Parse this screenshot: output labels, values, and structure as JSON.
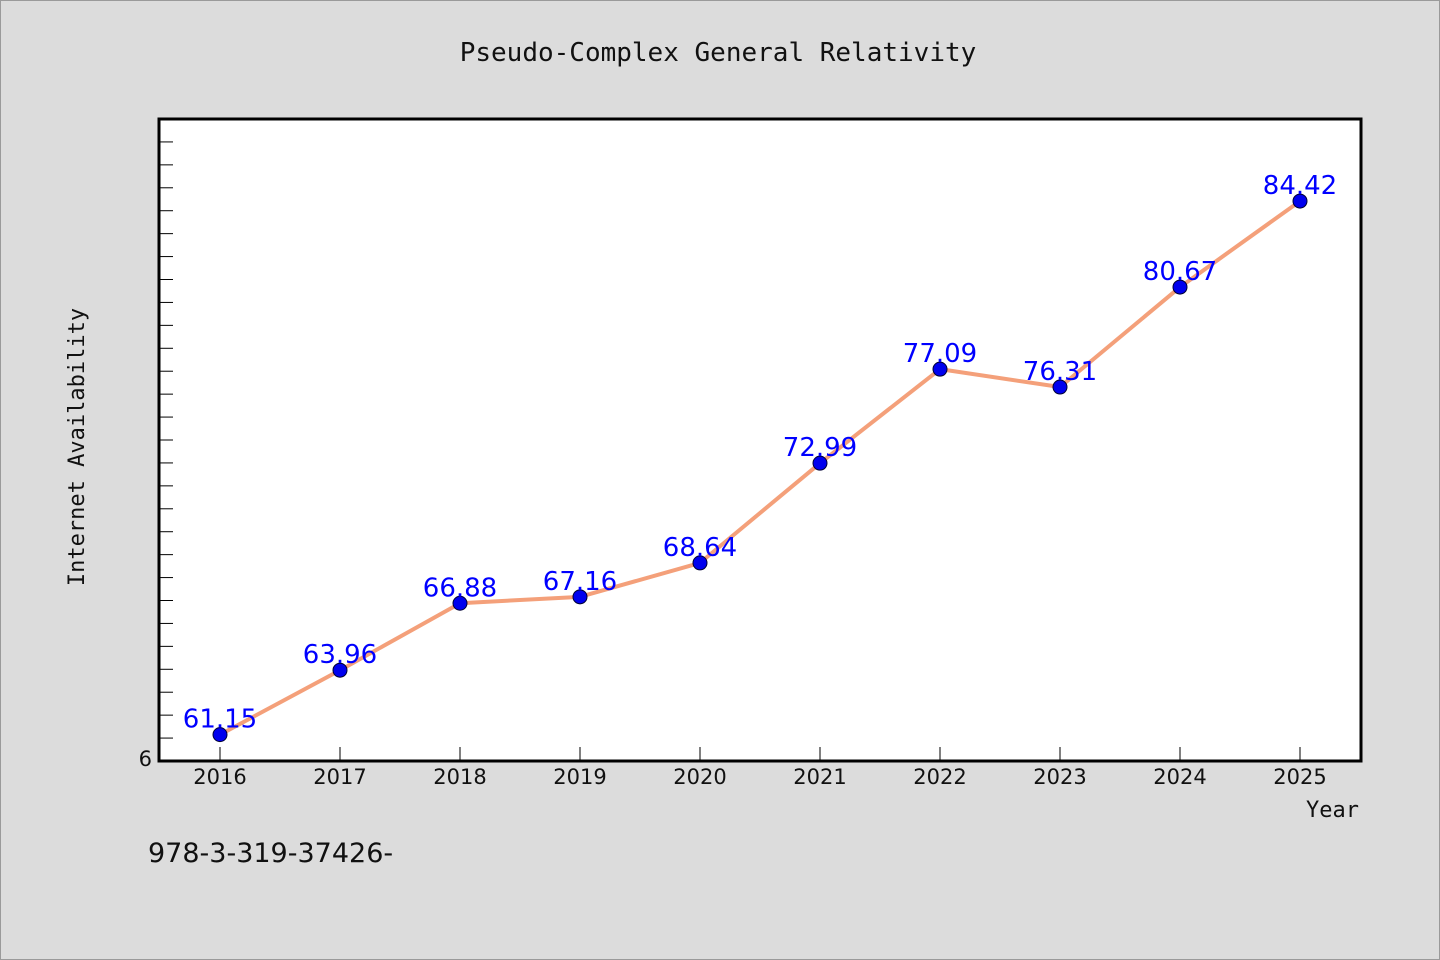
{
  "chart_data": {
    "type": "line",
    "title": "Pseudo-Complex General Relativity",
    "xlabel": "Year",
    "ylabel": "Internet Availability",
    "x": [
      "2016",
      "2017",
      "2018",
      "2019",
      "2020",
      "2021",
      "2022",
      "2023",
      "2024",
      "2025"
    ],
    "series": [
      {
        "values": [
          61.15,
          63.96,
          66.88,
          67.16,
          68.64,
          72.99,
          77.09,
          76.31,
          80.67,
          84.42
        ],
        "data_labels": [
          "61.15",
          "63.96",
          "66.88",
          "67.16",
          "68.64",
          "72.99",
          "77.09",
          "76.31",
          "80.67",
          "84.42"
        ],
        "line_color": "#f4a07a",
        "marker_color": "#0000ee"
      }
    ],
    "ylim": [
      60,
      88
    ],
    "y_tick_labels": [
      "6"
    ],
    "grid": false,
    "legend": "none"
  },
  "footer_text": "978-3-319-37426-",
  "colors": {
    "background": "#dcdcdc",
    "plot_area": "#ffffff",
    "data_label": "#0000ff"
  }
}
